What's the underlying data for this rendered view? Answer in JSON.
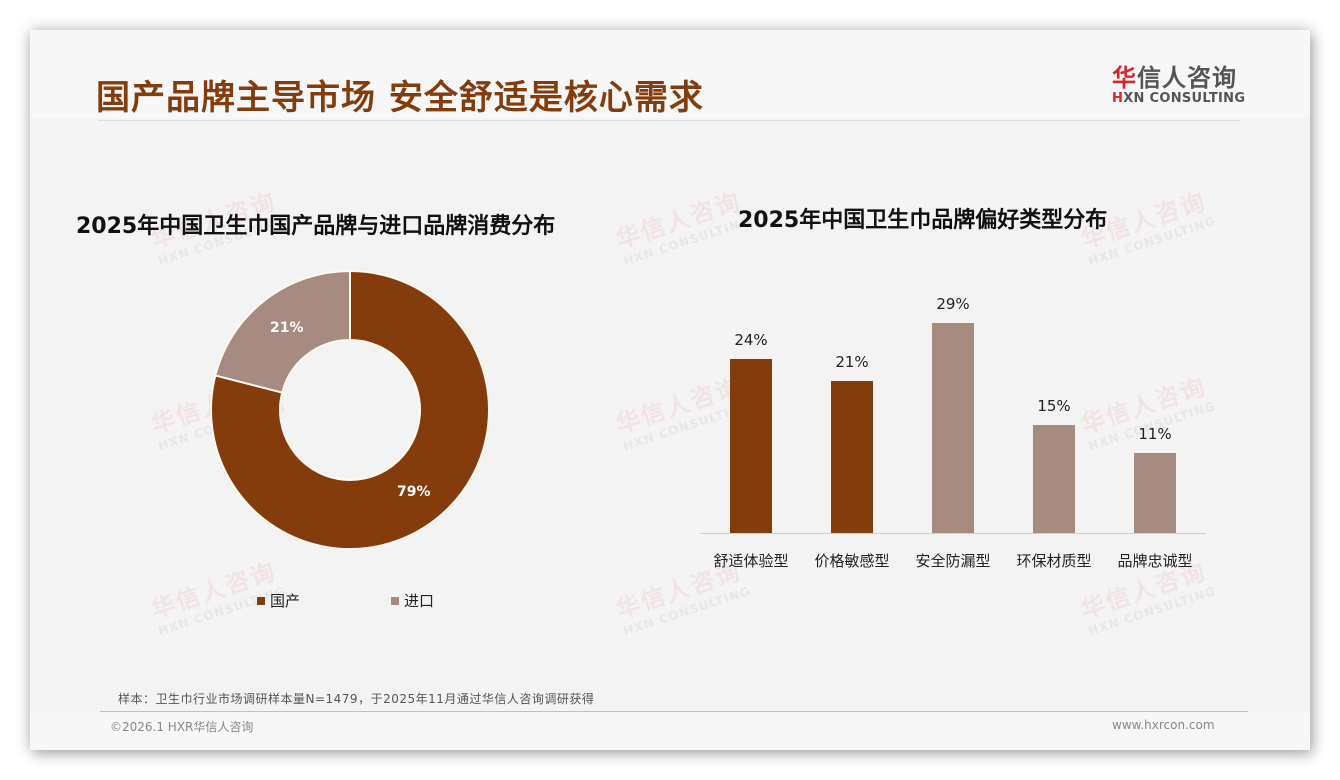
{
  "header": {
    "title": "国产品牌主导市场 安全舒适是核心需求",
    "logo_cn_first": "华",
    "logo_cn_rest": "信人咨询",
    "logo_en_first": "H",
    "logo_en_rest": "XN CONSULTING"
  },
  "watermark": {
    "cn": "华信人咨询",
    "en": "HXN CONSULTING"
  },
  "colors": {
    "primary": "#843c0c",
    "secondary": "#a88b80",
    "title": "#843c0c",
    "accent_red": "#d6262b"
  },
  "left_chart": {
    "title": "2025年中国卫生巾国产品牌与进口品牌消费分布",
    "slices": [
      {
        "label": "国产",
        "value_label": "79%",
        "color": "#843c0c"
      },
      {
        "label": "进口",
        "value_label": "21%",
        "color": "#a88b80"
      }
    ]
  },
  "right_chart": {
    "title": "2025年中国卫生巾品牌偏好类型分布",
    "bars": [
      {
        "label": "舒适体验型",
        "value_label": "24%",
        "color": "#843c0c"
      },
      {
        "label": "价格敏感型",
        "value_label": "21%",
        "color": "#843c0c"
      },
      {
        "label": "安全防漏型",
        "value_label": "29%",
        "color": "#a88b80"
      },
      {
        "label": "环保材质型",
        "value_label": "15%",
        "color": "#a88b80"
      },
      {
        "label": "品牌忠诚型",
        "value_label": "11%",
        "color": "#a88b80"
      }
    ]
  },
  "footer": {
    "note": "样本：卫生巾行业市场调研样本量N=1479，于2025年11月通过华信人咨询调研获得",
    "copyright": "©2026.1 HXR华信人咨询",
    "site": "www.hxrcon.com"
  },
  "chart_data": [
    {
      "type": "pie",
      "title": "2025年中国卫生巾国产品牌与进口品牌消费分布",
      "categories": [
        "国产",
        "进口"
      ],
      "values": [
        79,
        21
      ],
      "unit": "%",
      "donut": true,
      "legend_position": "bottom"
    },
    {
      "type": "bar",
      "title": "2025年中国卫生巾品牌偏好类型分布",
      "categories": [
        "舒适体验型",
        "价格敏感型",
        "安全防漏型",
        "环保材质型",
        "品牌忠诚型"
      ],
      "values": [
        24,
        21,
        29,
        15,
        11
      ],
      "unit": "%",
      "xlabel": "",
      "ylabel": "",
      "ylim": [
        0,
        30
      ],
      "grid": false,
      "data_labels": true
    }
  ]
}
